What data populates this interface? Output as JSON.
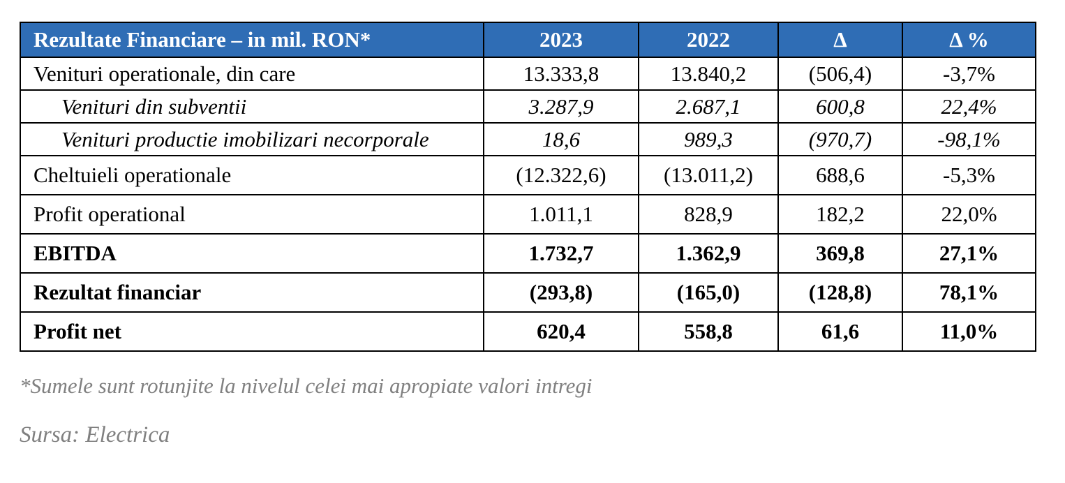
{
  "colors": {
    "header_background": "#2f6db5",
    "header_text": "#ffffff",
    "footnote_text": "#808080"
  },
  "table": {
    "headers": [
      "Rezultate Financiare – in mil. RON*",
      "2023",
      "2022",
      "Δ",
      "Δ %"
    ],
    "rows": [
      {
        "label": "Venituri operationale, din care",
        "values": [
          "13.333,8",
          "13.840,2",
          "(506,4)",
          "-3,7%"
        ],
        "style": "normal"
      },
      {
        "label": "Venituri din subventii",
        "values": [
          "3.287,9",
          "2.687,1",
          "600,8",
          "22,4%"
        ],
        "style": "italic-indented"
      },
      {
        "label": "Venituri productie imobilizari necorporale",
        "values": [
          "18,6",
          "989,3",
          "(970,7)",
          "-98,1%"
        ],
        "style": "italic-indented"
      },
      {
        "label": "Cheltuieli operationale",
        "values": [
          "(12.322,6)",
          "(13.011,2)",
          "688,6",
          "-5,3%"
        ],
        "style": "normal"
      },
      {
        "label": "Profit operational",
        "values": [
          "1.011,1",
          "828,9",
          "182,2",
          "22,0%"
        ],
        "style": "normal"
      },
      {
        "label": "EBITDA",
        "values": [
          "1.732,7",
          "1.362,9",
          "369,8",
          "27,1%"
        ],
        "style": "bold"
      },
      {
        "label": "Rezultat financiar",
        "values": [
          "(293,8)",
          "(165,0)",
          "(128,8)",
          "78,1%"
        ],
        "style": "bold"
      },
      {
        "label": "Profit net",
        "values": [
          "620,4",
          "558,8",
          "61,6",
          "11,0%"
        ],
        "style": "bold"
      }
    ]
  },
  "footnote": "*Sumele sunt rotunjite la nivelul celei mai apropiate valori intregi",
  "source": "Sursa: Electrica"
}
